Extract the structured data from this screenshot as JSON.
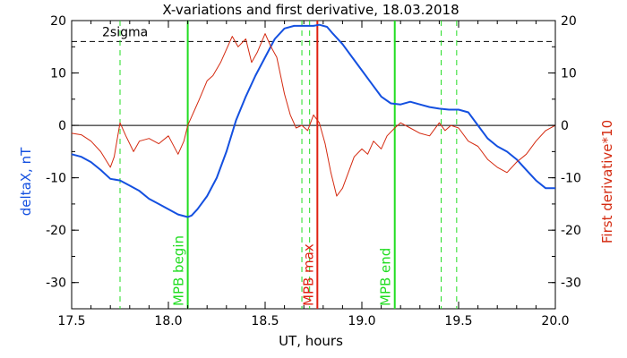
{
  "chart_data": {
    "type": "line",
    "title": "X-variations and first derivative, 18.03.2018",
    "xlabel": "UT, hours",
    "ylabel_left": "deltaX, nT",
    "ylabel_right": "First derivative*10",
    "xlim": [
      17.5,
      20.0
    ],
    "ylim": [
      -35,
      20
    ],
    "x_ticks": [
      17.5,
      18.0,
      18.5,
      19.0,
      19.5,
      20.0
    ],
    "x_tick_labels": [
      "17.5",
      "18.0",
      "18.5",
      "19.0",
      "19.5",
      "20.0"
    ],
    "y_ticks": [
      20,
      10,
      0,
      -10,
      -20,
      -30
    ],
    "y_tick_labels": [
      "20",
      "10",
      "0",
      "-10",
      "-20",
      "-30"
    ],
    "colors": {
      "deltaX": "#1450e0",
      "derivative": "#d42a10",
      "marker_green": "#22dd22",
      "marker_red": "#e02010",
      "reference": "#000000",
      "left_label": "#1450e0",
      "right_label": "#d42a10"
    },
    "reference_lines": [
      {
        "y": 16,
        "style": "dashed",
        "label": "2sigma"
      },
      {
        "y": 0,
        "style": "solid"
      }
    ],
    "vertical_markers": [
      {
        "x": 18.1,
        "style": "solid",
        "color": "green",
        "label": "MPB begin"
      },
      {
        "x": 18.77,
        "style": "solid",
        "color": "red",
        "label": "MPB max"
      },
      {
        "x": 19.17,
        "style": "solid",
        "color": "green",
        "label": "MPB end"
      },
      {
        "x": 17.75,
        "style": "dashed",
        "color": "green"
      },
      {
        "x": 18.69,
        "style": "dashed",
        "color": "green"
      },
      {
        "x": 18.73,
        "style": "dashed",
        "color": "green"
      },
      {
        "x": 19.41,
        "style": "dashed",
        "color": "green"
      },
      {
        "x": 19.49,
        "style": "dashed",
        "color": "green"
      }
    ],
    "series": [
      {
        "x": [
          17.5,
          17.55,
          17.6,
          17.65,
          17.7,
          17.75,
          17.8,
          17.85,
          17.9,
          17.95,
          18.0,
          18.05,
          18.08,
          18.1,
          18.12,
          18.15,
          18.2,
          18.25,
          18.3,
          18.35,
          18.4,
          18.45,
          18.5,
          18.55,
          18.6,
          18.65,
          18.7,
          18.75,
          18.78,
          18.82,
          18.85,
          18.9,
          18.95,
          19.0,
          19.05,
          19.1,
          19.15,
          19.2,
          19.25,
          19.3,
          19.35,
          19.4,
          19.45,
          19.5,
          19.55,
          19.6,
          19.65,
          19.7,
          19.75,
          19.8,
          19.85,
          19.9,
          19.95,
          20.0
        ],
        "values": [
          -5.5,
          -6.0,
          -7.0,
          -8.5,
          -10.2,
          -10.5,
          -11.5,
          -12.5,
          -14.0,
          -15.0,
          -16.0,
          -17.0,
          -17.3,
          -17.5,
          -17.2,
          -16.0,
          -13.5,
          -10.0,
          -5.0,
          1.0,
          5.5,
          9.5,
          13.0,
          16.5,
          18.5,
          19.0,
          19.0,
          19.0,
          19.2,
          18.8,
          17.5,
          15.5,
          13.0,
          10.5,
          8.0,
          5.5,
          4.2,
          4.0,
          4.5,
          4.0,
          3.5,
          3.2,
          3.0,
          3.0,
          2.5,
          0.0,
          -2.5,
          -4.0,
          -5.0,
          -6.5,
          -8.5,
          -10.5,
          -12.0,
          -12.0
        ]
      },
      {
        "x": [
          17.5,
          17.55,
          17.6,
          17.65,
          17.7,
          17.72,
          17.75,
          17.78,
          17.82,
          17.85,
          17.9,
          17.95,
          18.0,
          18.05,
          18.08,
          18.1,
          18.13,
          18.16,
          18.2,
          18.23,
          18.27,
          18.3,
          18.33,
          18.36,
          18.4,
          18.43,
          18.46,
          18.5,
          18.53,
          18.56,
          18.6,
          18.63,
          18.66,
          18.69,
          18.72,
          18.75,
          18.78,
          18.81,
          18.84,
          18.87,
          18.9,
          18.93,
          18.96,
          19.0,
          19.03,
          19.06,
          19.1,
          19.13,
          19.17,
          19.2,
          19.25,
          19.3,
          19.35,
          19.4,
          19.43,
          19.46,
          19.5,
          19.55,
          19.6,
          19.65,
          19.7,
          19.75,
          19.8,
          19.85,
          19.9,
          19.95,
          20.0
        ],
        "values": [
          -1.5,
          -1.8,
          -3.0,
          -5.0,
          -8.0,
          -6.0,
          0.5,
          -2.0,
          -5.0,
          -3.0,
          -2.5,
          -3.5,
          -2.0,
          -5.5,
          -3.0,
          0.0,
          2.5,
          5.0,
          8.5,
          9.5,
          12.0,
          14.5,
          17.0,
          15.0,
          16.5,
          12.0,
          14.0,
          17.5,
          15.0,
          13.0,
          6.0,
          2.0,
          -0.5,
          0.0,
          -1.0,
          2.0,
          0.5,
          -3.5,
          -9.0,
          -13.5,
          -12.0,
          -9.0,
          -6.0,
          -4.5,
          -5.5,
          -3.0,
          -4.5,
          -2.0,
          -0.5,
          0.5,
          -0.5,
          -1.5,
          -2.0,
          0.5,
          -1.0,
          0.0,
          -0.5,
          -3.0,
          -4.0,
          -6.5,
          -8.0,
          -9.0,
          -7.0,
          -5.5,
          -3.0,
          -1.0,
          0.0
        ]
      }
    ]
  }
}
